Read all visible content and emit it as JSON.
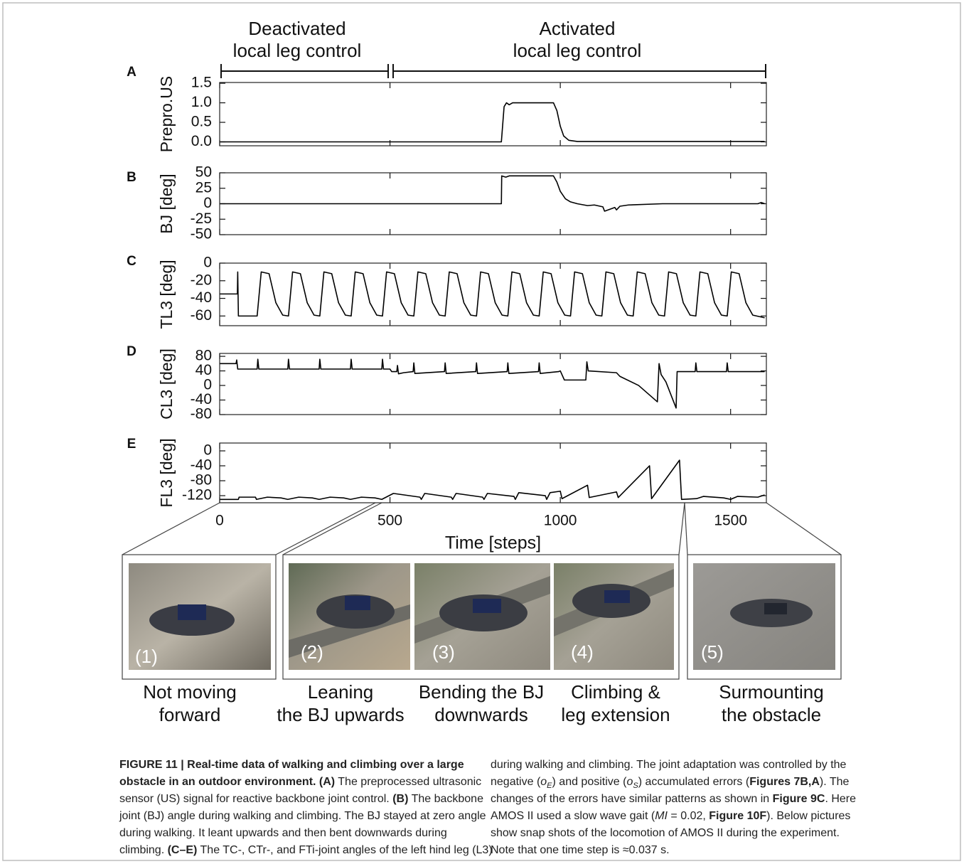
{
  "annotations": [
    [
      "Deactivated",
      "local leg control"
    ],
    [
      "Activated",
      "local leg control"
    ]
  ],
  "chart_data": [
    {
      "type": "line",
      "panel": "A",
      "ylabel": "Prepro.US",
      "color": "#000000",
      "x": [
        0,
        827,
        835,
        842,
        850,
        860,
        980,
        990,
        1000,
        1010,
        1025,
        1050,
        1600
      ],
      "values": [
        0,
        0,
        0.9,
        1.0,
        0.95,
        1.0,
        1.0,
        0.8,
        0.4,
        0.15,
        0.04,
        0.01,
        0.01
      ],
      "xlim": [
        0,
        1605
      ],
      "ylim": [
        -0.1,
        1.52
      ],
      "yticks": [
        {
          "value": 0,
          "label": "0.0"
        },
        0.5,
        {
          "value": 1,
          "label": "1.0"
        },
        1.5
      ]
    },
    {
      "type": "line",
      "panel": "B",
      "ylabel": "BJ [deg]",
      "color": "#000000",
      "x": [
        0,
        827,
        828,
        840,
        850,
        980,
        990,
        1000,
        1015,
        1030,
        1050,
        1080,
        1100,
        1125,
        1130,
        1160,
        1165,
        1175,
        1200,
        1300,
        1580,
        1590,
        1600
      ],
      "values": [
        0,
        0,
        45,
        43,
        45,
        45,
        35,
        20,
        8,
        3,
        0,
        -3,
        -2,
        -5,
        -12,
        -6,
        -10,
        -4,
        -2,
        0,
        0,
        2,
        0
      ],
      "xlim": [
        0,
        1605
      ],
      "ylim": [
        -50,
        50
      ],
      "yticks": [
        50,
        25,
        0,
        -25,
        -50
      ]
    },
    {
      "type": "line",
      "panel": "C",
      "ylabel": "TL3 [deg]",
      "color": "#000000",
      "x": [
        0,
        52,
        53,
        55,
        110,
        122,
        145,
        165,
        185,
        202,
        214,
        237,
        257,
        277,
        294,
        306,
        329,
        349,
        369,
        386,
        398,
        421,
        441,
        461,
        478,
        490,
        513,
        533,
        553,
        570,
        582,
        605,
        625,
        645,
        662,
        674,
        697,
        717,
        737,
        754,
        766,
        789,
        809,
        829,
        846,
        858,
        881,
        901,
        921,
        938,
        950,
        973,
        993,
        1013,
        1030,
        1042,
        1065,
        1085,
        1105,
        1122,
        1134,
        1157,
        1177,
        1197,
        1214,
        1226,
        1249,
        1269,
        1289,
        1306,
        1318,
        1341,
        1361,
        1381,
        1398,
        1410,
        1433,
        1453,
        1473,
        1490,
        1502,
        1525,
        1545,
        1565,
        1600
      ],
      "values": [
        -35,
        -35,
        -10,
        -60,
        -60,
        -10,
        -12,
        -45,
        -59,
        -60,
        -10,
        -12,
        -45,
        -59,
        -60,
        -10,
        -12,
        -45,
        -59,
        -60,
        -10,
        -12,
        -45,
        -59,
        -60,
        -10,
        -12,
        -45,
        -59,
        -60,
        -10,
        -12,
        -45,
        -59,
        -60,
        -10,
        -12,
        -45,
        -59,
        -60,
        -10,
        -12,
        -45,
        -59,
        -60,
        -10,
        -12,
        -45,
        -59,
        -60,
        -10,
        -12,
        -45,
        -59,
        -60,
        -10,
        -12,
        -45,
        -59,
        -60,
        -10,
        -12,
        -45,
        -59,
        -60,
        -10,
        -12,
        -45,
        -59,
        -60,
        -10,
        -12,
        -45,
        -59,
        -60,
        -10,
        -12,
        -45,
        -59,
        -60,
        -10,
        -12,
        -45,
        -59,
        -62
      ],
      "xlim": [
        0,
        1605
      ],
      "ylim": [
        -71,
        0
      ],
      "yticks": [
        0,
        -20,
        -40,
        -60
      ]
    },
    {
      "type": "line",
      "panel": "D",
      "ylabel": "CL3 [deg]",
      "color": "#000000",
      "x": [
        0,
        48,
        50,
        53,
        110,
        112,
        115,
        200,
        202,
        205,
        292,
        294,
        297,
        384,
        386,
        389,
        476,
        478,
        481,
        500,
        505,
        520,
        522,
        525,
        540,
        568,
        570,
        573,
        660,
        662,
        665,
        752,
        754,
        757,
        844,
        846,
        849,
        936,
        938,
        941,
        995,
        1000,
        1012,
        1075,
        1078,
        1082,
        1165,
        1175,
        1230,
        1285,
        1290,
        1296,
        1310,
        1340,
        1343,
        1396,
        1398,
        1401,
        1488,
        1490,
        1493,
        1600
      ],
      "values": [
        60,
        60,
        70,
        45,
        45,
        72,
        45,
        45,
        72,
        45,
        45,
        72,
        45,
        45,
        72,
        45,
        45,
        72,
        45,
        45,
        38,
        38,
        55,
        32,
        35,
        38,
        62,
        33,
        38,
        62,
        33,
        38,
        62,
        33,
        38,
        62,
        33,
        38,
        62,
        33,
        38,
        40,
        15,
        15,
        65,
        40,
        35,
        25,
        0,
        -45,
        60,
        30,
        10,
        -62,
        38,
        38,
        62,
        38,
        38,
        62,
        38,
        38
      ],
      "xlim": [
        0,
        1605
      ],
      "ylim": [
        -80,
        88
      ],
      "yticks": [
        80,
        40,
        0,
        -40,
        -80
      ]
    },
    {
      "type": "line",
      "panel": "E",
      "ylabel": "FL3 [deg]",
      "xlabel": "Time [steps]",
      "color": "#000000",
      "x": [
        0,
        55,
        57,
        105,
        108,
        140,
        180,
        200,
        232,
        272,
        292,
        324,
        364,
        384,
        416,
        456,
        476,
        510,
        588,
        592,
        602,
        680,
        684,
        694,
        772,
        776,
        786,
        864,
        868,
        878,
        956,
        960,
        970,
        1000,
        1005,
        1080,
        1085,
        1165,
        1170,
        1262,
        1268,
        1350,
        1356,
        1400,
        1420,
        1480,
        1500,
        1520,
        1580,
        1600
      ],
      "values": [
        -130,
        -130,
        -124,
        -124,
        -130,
        -124,
        -126,
        -130,
        -124,
        -126,
        -130,
        -124,
        -126,
        -130,
        -124,
        -126,
        -130,
        -114,
        -124,
        -130,
        -114,
        -124,
        -130,
        -114,
        -124,
        -130,
        -114,
        -122,
        -130,
        -112,
        -120,
        -130,
        -112,
        -108,
        -128,
        -92,
        -125,
        -110,
        -125,
        -40,
        -128,
        -25,
        -130,
        -128,
        -122,
        -126,
        -130,
        -122,
        -124,
        -118
      ],
      "xlim": [
        0,
        1605
      ],
      "ylim": [
        -139,
        21
      ],
      "yticks": [
        0,
        -40,
        -80,
        -120
      ],
      "xticks": [
        0,
        500,
        1000,
        1500
      ]
    }
  ],
  "photos": [
    {
      "label": "(1)",
      "caption": [
        "Not moving",
        "forward"
      ]
    },
    {
      "label": "(2)",
      "caption": [
        "Leaning",
        "the BJ upwards"
      ]
    },
    {
      "label": "(3)",
      "caption": [
        "Bending the BJ",
        "downwards"
      ]
    },
    {
      "label": "(4)",
      "caption": [
        "Climbing &",
        "leg extension"
      ]
    },
    {
      "label": "(5)",
      "caption": [
        "Surmounting",
        "the obstacle"
      ]
    }
  ],
  "caption": {
    "left": [
      [
        "FIGURE 11 | Real-time data of walking and climbing over a large"
      ],
      [
        "obstacle in an outdoor environment. (A)",
        " The preprocessed ultrasonic"
      ],
      [
        "sensor (US) signal for reactive backbone joint control. ",
        "(B)",
        " The backbone"
      ],
      [
        "joint (BJ) angle during walking and climbing. The BJ stayed at zero angle"
      ],
      [
        "during walking. It leant upwards and then bent downwards during"
      ],
      [
        "climbing. ",
        "(C–E)",
        " The TC-, CTr-, and FTi-joint angles of the left hind leg (L3)"
      ]
    ],
    "right": [
      [
        "during walking and climbing. The joint adaptation was controlled by the"
      ],
      [
        "negative (",
        "o",
        "E",
        ") and positive (",
        "o",
        "S",
        ") accumulated errors (",
        "Figures 7B,A",
        "). The"
      ],
      [
        "changes of the errors have similar patterns as shown in ",
        "Figure 9C",
        ". Here"
      ],
      [
        "AMOS II used a slow wave gait (",
        "MI",
        " = 0.02, ",
        "Figure 10F",
        "). Below pictures"
      ],
      [
        "show snap shots of the locomotion of AMOS II during the experiment."
      ],
      [
        "Note that one time step is ≈0.037 s."
      ]
    ]
  }
}
